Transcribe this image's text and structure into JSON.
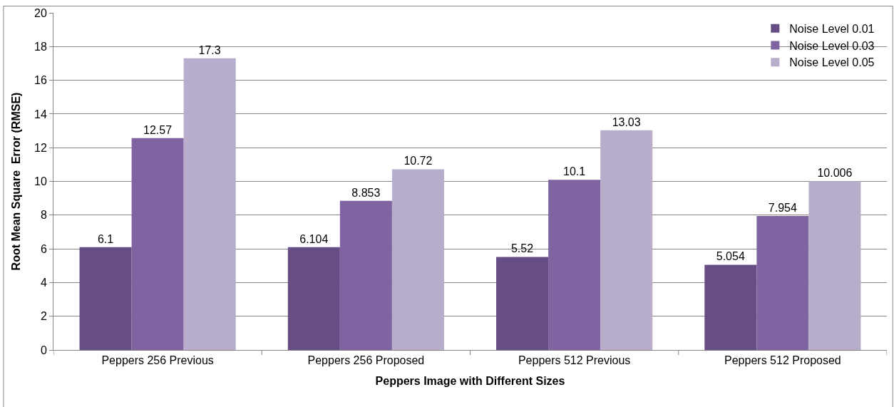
{
  "chart_data": {
    "type": "bar",
    "xlabel": "Peppers Image with Different Sizes",
    "ylabel": "Root Mean Square  Error (RMSE)",
    "categories": [
      "Peppers 256 Previous",
      "Peppers 256 Proposed",
      "Peppers 512 Previous",
      "Peppers 512 Proposed"
    ],
    "series": [
      {
        "name": "Noise Level 0.01",
        "color": "#664d84",
        "values": [
          6.1,
          6.104,
          5.52,
          5.054
        ]
      },
      {
        "name": "Noise Level 0.03",
        "color": "#8064a2",
        "values": [
          12.57,
          8.853,
          10.1,
          7.954
        ]
      },
      {
        "name": "Noise Level 0.05",
        "color": "#b8aecc",
        "values": [
          17.3,
          10.72,
          13.03,
          10.006
        ]
      }
    ],
    "ylim": [
      0,
      20
    ],
    "yticks": [
      0,
      2,
      4,
      6,
      8,
      10,
      12,
      14,
      16,
      18,
      20
    ],
    "grid": "y",
    "legend": "top right",
    "data_labels": true
  }
}
